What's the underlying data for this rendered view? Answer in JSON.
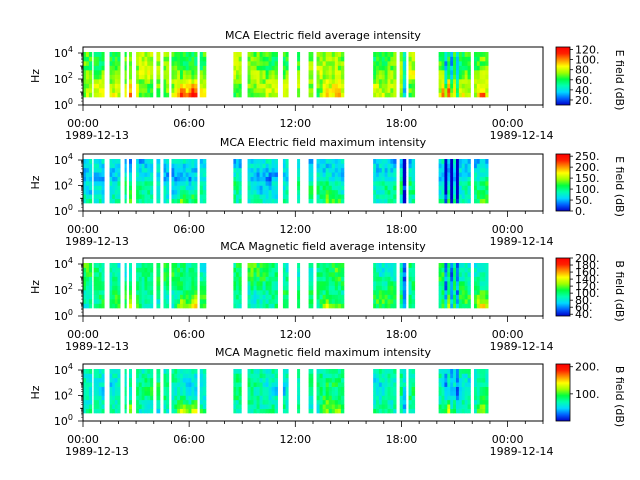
{
  "chart_data": [
    {
      "type": "heatmap",
      "title": "MCA  Electric field average intensity",
      "ylabel": "Hz",
      "yscale": "log",
      "yticks": [
        "10^0",
        "10^2",
        "10^4"
      ],
      "xticks": [
        "00:00",
        "06:00",
        "12:00",
        "18:00",
        "00:00"
      ],
      "xtick_dates": [
        "1989-12-13",
        "1989-12-14"
      ],
      "xlim": [
        "1989-12-13 00:00",
        "1989-12-14 00:00"
      ],
      "colorbar": {
        "label": "E field (dB)",
        "ticks": [
          "20.",
          "40.",
          "60.",
          "80.",
          "100.",
          "120."
        ],
        "range": [
          10,
          125
        ]
      }
    },
    {
      "type": "heatmap",
      "title": "MCA  Electric field maximum intensity",
      "ylabel": "Hz",
      "yscale": "log",
      "yticks": [
        "10^0",
        "10^2",
        "10^4"
      ],
      "xticks": [
        "00:00",
        "06:00",
        "12:00",
        "18:00",
        "00:00"
      ],
      "xtick_dates": [
        "1989-12-13",
        "1989-12-14"
      ],
      "xlim": [
        "1989-12-13 00:00",
        "1989-12-14 00:00"
      ],
      "colorbar": {
        "label": "E field (dB)",
        "ticks": [
          "0.",
          "50.",
          "100.",
          "150.",
          "200.",
          "250."
        ],
        "range": [
          0,
          260
        ]
      }
    },
    {
      "type": "heatmap",
      "title": "MCA  Magnetic field average intensity",
      "ylabel": "Hz",
      "yscale": "log",
      "yticks": [
        "10^0",
        "10^2",
        "10^4"
      ],
      "xticks": [
        "00:00",
        "06:00",
        "12:00",
        "18:00",
        "00:00"
      ],
      "xtick_dates": [
        "1989-12-13",
        "1989-12-14"
      ],
      "xlim": [
        "1989-12-13 00:00",
        "1989-12-14 00:00"
      ],
      "colorbar": {
        "label": "B field (dB)",
        "ticks": [
          "40.",
          "60.",
          "80.",
          "100.",
          "120.",
          "140.",
          "160.",
          "180.",
          "200."
        ],
        "range": [
          35,
          200
        ]
      }
    },
    {
      "type": "heatmap",
      "title": "MCA  Magnetic field maximum intensity",
      "ylabel": "Hz",
      "yscale": "log",
      "yticks": [
        "10^0",
        "10^2",
        "10^4"
      ],
      "xticks": [
        "00:00",
        "06:00",
        "12:00",
        "18:00",
        "00:00"
      ],
      "xtick_dates": [
        "1989-12-13",
        "1989-12-14"
      ],
      "xlim": [
        "1989-12-13 00:00",
        "1989-12-14 00:00"
      ],
      "colorbar": {
        "label": "B field (dB)",
        "ticks": [
          "100.",
          "200."
        ],
        "range": [
          0,
          210
        ]
      }
    }
  ],
  "data_segments_hours": [
    [
      0.0,
      0.5
    ],
    [
      0.6,
      1.2
    ],
    [
      1.5,
      2.1
    ],
    [
      2.35,
      2.45
    ],
    [
      2.6,
      2.75
    ],
    [
      3.0,
      3.95
    ],
    [
      4.15,
      4.35
    ],
    [
      4.55,
      4.85
    ],
    [
      5.0,
      6.45
    ],
    [
      6.6,
      6.95
    ],
    [
      8.5,
      8.95
    ],
    [
      9.3,
      11.0
    ],
    [
      11.3,
      11.6
    ],
    [
      12.1,
      12.25
    ],
    [
      12.75,
      13.0
    ],
    [
      13.2,
      14.75
    ],
    [
      16.4,
      17.7
    ],
    [
      17.9,
      18.25
    ],
    [
      18.4,
      18.75
    ],
    [
      20.1,
      21.9
    ],
    [
      22.1,
      22.9
    ]
  ],
  "colorbar_colors": [
    "#0000c8",
    "#0060ff",
    "#00d8ff",
    "#00ffb0",
    "#00ff40",
    "#a0ff00",
    "#ffff00",
    "#ff9000",
    "#ff2000",
    "#ff0000"
  ]
}
